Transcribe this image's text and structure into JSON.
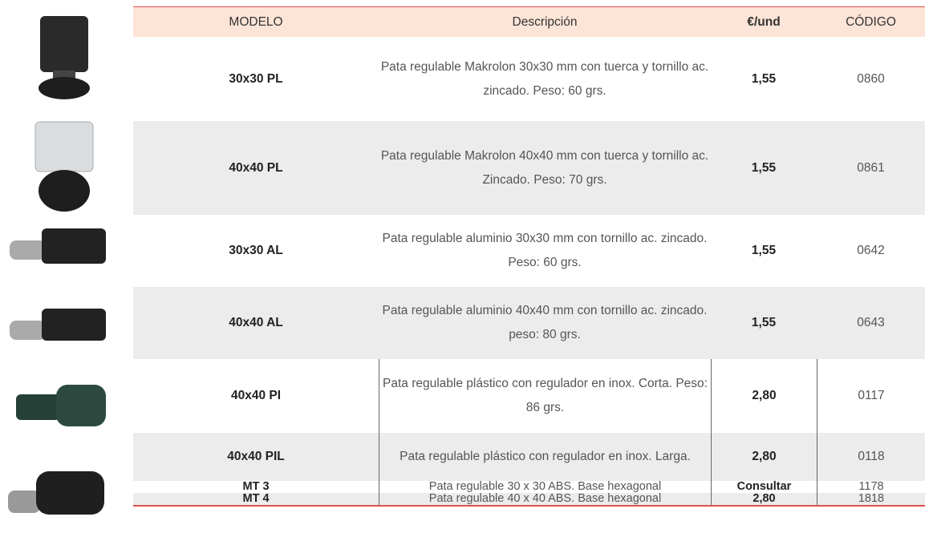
{
  "table": {
    "headers": [
      "MODELO",
      "Descripción",
      "€/und",
      "CÓDIGO"
    ],
    "rows": [
      [
        "30x30 PL",
        "Pata regulable Makrolon 30x30 mm con tuerca y tornillo ac. zincado. Peso: 60 grs.",
        "1,55",
        "0860"
      ],
      [
        "40x40 PL",
        "Pata regulable Makrolon 40x40 mm con tuerca y tornillo ac. Zincado. Peso: 70 grs.",
        "1,55",
        "0861"
      ],
      [
        "30x30 AL",
        "Pata regulable aluminio 30x30 mm con tornillo ac. zincado. Peso: 60 grs.",
        "1,55",
        "0642"
      ],
      [
        "40x40 AL",
        "Pata regulable aluminio 40x40 mm con tornillo ac. zincado. peso: 80 grs.",
        "1,55",
        "0643"
      ],
      [
        "40x40 PI",
        "Pata regulable plástico con regulador en  inox. Corta. Peso: 86 grs.",
        "2,80",
        "0117"
      ],
      [
        "40x40 PIL",
        "Pata regulable plástico con regulador en  inox. Larga.",
        "2,80",
        "0118"
      ],
      [
        "MT 3",
        "Pata regulable 30 x 30 ABS. Base hexagonal",
        "Consultar",
        "1178"
      ],
      [
        "MT 4",
        "Pata regulable 40 x 40 ABS. Base hexagonal",
        "2,80",
        "1818"
      ]
    ]
  }
}
